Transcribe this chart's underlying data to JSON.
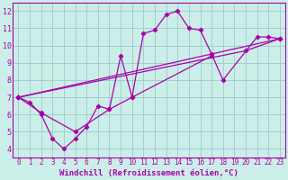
{
  "xlabel": "Windchill (Refroidissement éolien,°C)",
  "bg_color": "#cceee8",
  "line_color": "#aa00aa",
  "grid_color": "#99cccc",
  "spine_color": "#aa00aa",
  "xlim": [
    -0.5,
    23.5
  ],
  "ylim": [
    3.5,
    12.5
  ],
  "xticks": [
    0,
    1,
    2,
    3,
    4,
    5,
    6,
    7,
    8,
    9,
    10,
    11,
    12,
    13,
    14,
    15,
    16,
    17,
    18,
    19,
    20,
    21,
    22,
    23
  ],
  "yticks": [
    4,
    5,
    6,
    7,
    8,
    9,
    10,
    11,
    12
  ],
  "series0_x": [
    0,
    1,
    2,
    3,
    4,
    5,
    6,
    7,
    8,
    9,
    10,
    11,
    12,
    13,
    14,
    15,
    16,
    17,
    18,
    21,
    22,
    23
  ],
  "series0_y": [
    7.0,
    6.7,
    6.0,
    4.6,
    4.0,
    4.6,
    5.3,
    6.5,
    6.3,
    9.4,
    7.0,
    10.7,
    10.9,
    11.8,
    12.0,
    11.0,
    10.9,
    9.5,
    8.0,
    10.5,
    10.5,
    10.4
  ],
  "series1_x": [
    0,
    2,
    5,
    8,
    10,
    17
  ],
  "series1_y": [
    7.0,
    6.1,
    5.0,
    6.3,
    7.0,
    9.4
  ],
  "series2_x": [
    0,
    20,
    23
  ],
  "series2_y": [
    7.0,
    9.7,
    10.4
  ],
  "series3_x": [
    0,
    23
  ],
  "series3_y": [
    7.0,
    10.4
  ],
  "xlabel_fontsize": 6.5,
  "tick_fontsize": 5.5
}
